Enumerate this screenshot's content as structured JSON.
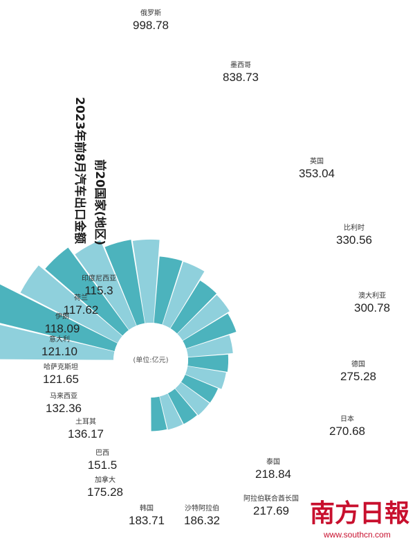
{
  "chart_data": {
    "type": "radial-bar",
    "title": "2023年前8月汽车出口金额",
    "subtitle": "前20国家(地区)",
    "unit": "(单位:亿元)",
    "categories": [
      "俄罗斯",
      "墨西哥",
      "英国",
      "比利时",
      "澳大利亚",
      "德国",
      "日本",
      "泰国",
      "阿拉伯联合酋长国",
      "沙特阿拉伯",
      "韩国",
      "加拿大",
      "巴西",
      "土耳其",
      "马来西亚",
      "哈萨克斯坦",
      "意大利",
      "伊朗",
      "荷兰",
      "印度尼西亚"
    ],
    "values": [
      "998.78",
      "838.73",
      "353.04",
      "330.56",
      "300.78",
      "275.28",
      "270.68",
      "218.84",
      "217.69",
      "186.32",
      "183.71",
      "175.28",
      "151.5",
      "136.17",
      "132.36",
      "121.65",
      "121.10",
      "118.09",
      "117.62",
      "115.3"
    ],
    "colors": [
      "#8fd0dc",
      "#4cb3bd"
    ]
  },
  "watermark": {
    "logo": "南方日報",
    "url": "www.southcn.com"
  }
}
